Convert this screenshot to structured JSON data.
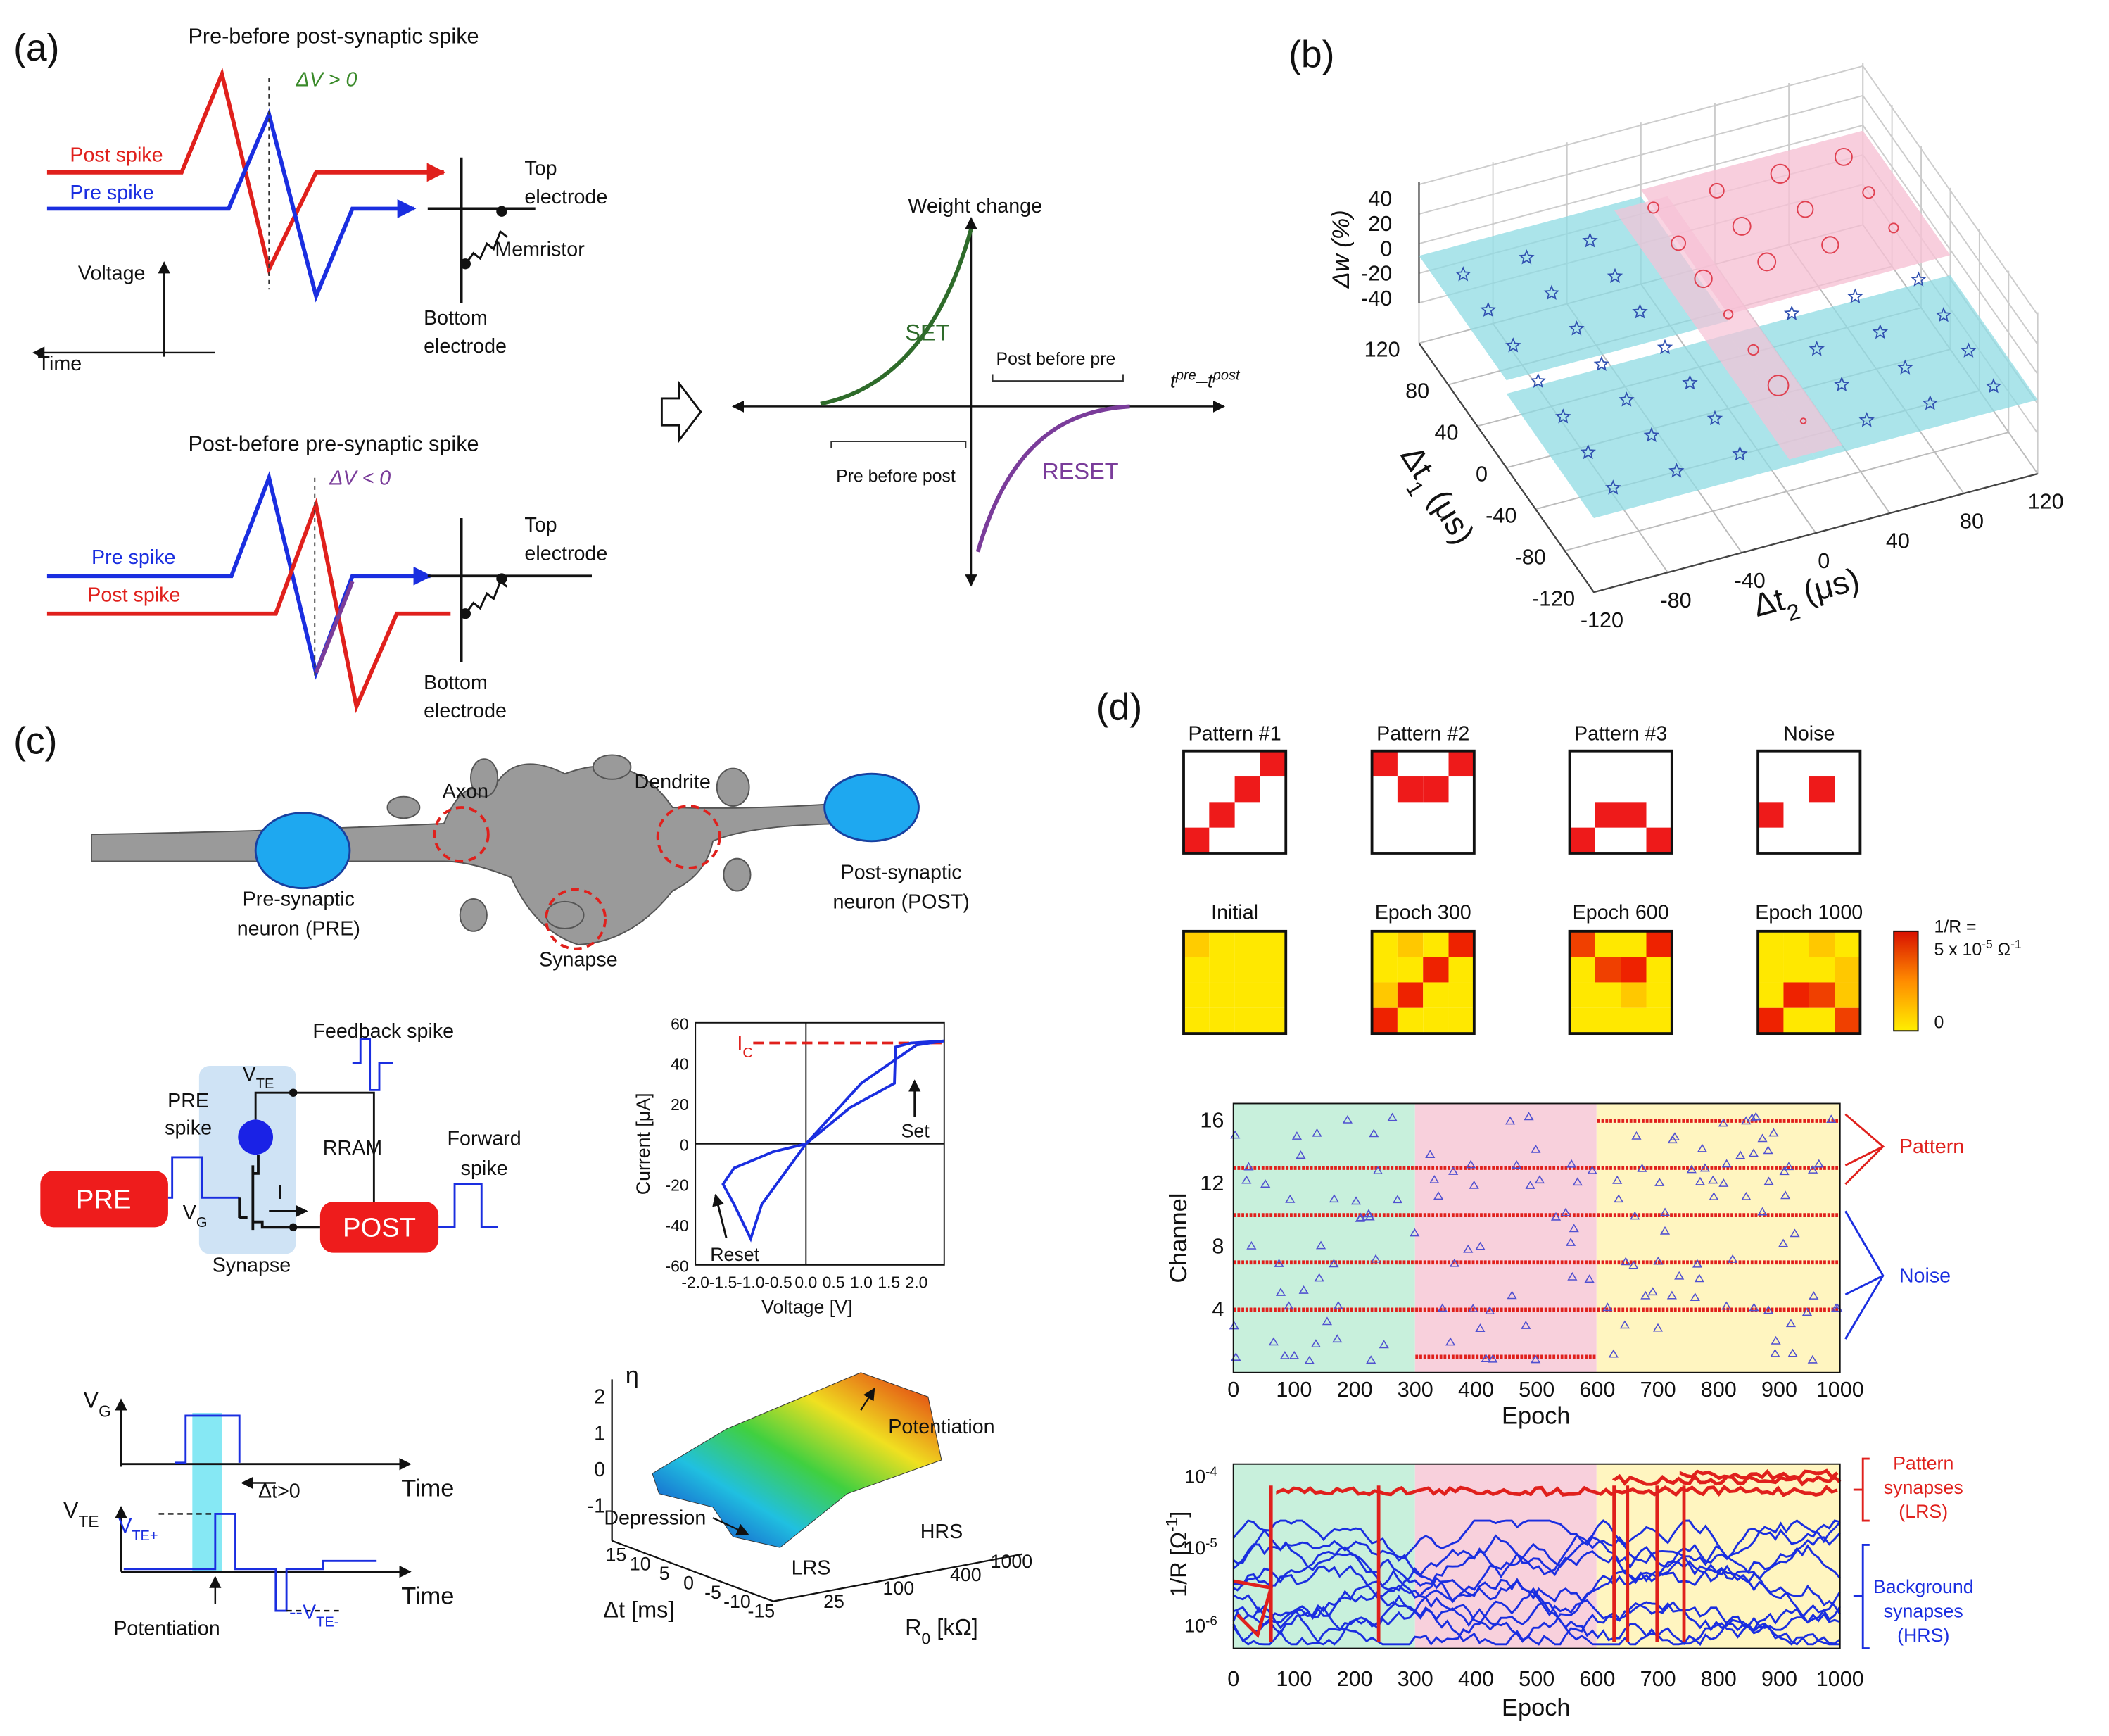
{
  "panel_a": {
    "label": "(a)",
    "pre_before_post": {
      "title": "Pre-before post-synaptic spike",
      "delta_v": "ΔV > 0",
      "post_spike": "Post spike",
      "pre_spike": "Pre spike",
      "top_electrode": [
        "Top",
        "electrode"
      ],
      "memristor": "Memristor",
      "bottom_electrode": [
        "Bottom",
        "electrode"
      ],
      "voltage": "Voltage",
      "time": "Time"
    },
    "post_before_pre": {
      "title": "Post-before pre-synaptic spike",
      "delta_v": "ΔV < 0",
      "pre_spike": "Pre spike",
      "post_spike": "Post spike",
      "top_electrode": [
        "Top",
        "electrode"
      ],
      "bottom_electrode": [
        "Bottom",
        "electrode"
      ]
    },
    "weight_plot": {
      "title": "Weight change",
      "set": "SET",
      "reset": "RESET",
      "post_before_pre": "Post before pre",
      "pre_before_post": "Pre before post",
      "x_label": [
        "t",
        "pre",
        "–t",
        "post"
      ]
    }
  },
  "panel_b": {
    "label": "(b)",
    "z_label": "Δw (%)",
    "z_ticks": [
      40,
      20,
      0,
      -20,
      -40
    ],
    "y_label": [
      "Δt",
      "1",
      " (μs)"
    ],
    "y_ticks": [
      120,
      80,
      40,
      0,
      -40,
      -80,
      -120
    ],
    "x_label": [
      "Δt",
      "2",
      " (μs)"
    ],
    "x_ticks": [
      -120,
      -80,
      -40,
      0,
      40,
      80,
      120
    ]
  },
  "panel_c": {
    "label": "(c)",
    "neuron": {
      "axon": "Axon",
      "dendrite": "Dendrite",
      "pre_neuron": [
        "Pre-synaptic",
        "neuron (PRE)"
      ],
      "post_neuron": [
        "Post-synaptic",
        "neuron (POST)"
      ],
      "synapse": "Synapse"
    },
    "circuit": {
      "feedback_spike": "Feedback spike",
      "v_te": [
        "V",
        "TE"
      ],
      "pre_spike": [
        "PRE",
        "spike"
      ],
      "rram": "RRAM",
      "forward_spike": [
        "Forward",
        "spike"
      ],
      "pre": "PRE",
      "post": "POST",
      "v_g": [
        "V",
        "G"
      ],
      "current": "I",
      "synapse": "Synapse"
    },
    "iv_plot": {
      "y_label": "Current [μA]",
      "x_label": "Voltage [V]",
      "y_ticks": [
        60,
        40,
        20,
        0,
        -20,
        -40,
        -60
      ],
      "x_ticks": [
        "-2.0",
        "-1.5",
        "-1.0",
        "-0.5",
        "0.0",
        "0.5",
        "1.0",
        "1.5",
        "2.0"
      ],
      "ic": [
        "I",
        "C"
      ],
      "set": "Set",
      "reset": "Reset"
    },
    "timing": {
      "v_g": [
        "V",
        "G"
      ],
      "v_te": [
        "V",
        "TE"
      ],
      "v_te_plus": [
        "V",
        "TE+"
      ],
      "v_te_minus": [
        "--V",
        "TE-"
      ],
      "delta_t": "Δt>0",
      "time": [
        "Time",
        "Time"
      ],
      "potentiation": "Potentiation"
    },
    "eta_plot": {
      "z_label": "η",
      "z_ticks": [
        2,
        1,
        0,
        -1
      ],
      "potentiation": "Potentiation",
      "depression": "Depression",
      "hrs": "HRS",
      "lrs": "LRS",
      "dt_label": "Δt [ms]",
      "dt_ticks": [
        15,
        10,
        5,
        0,
        -5,
        -10,
        -15
      ],
      "r_ticks": [
        25,
        100,
        400,
        1000
      ],
      "r_label": [
        "R",
        "0",
        " [kΩ]"
      ]
    }
  },
  "panel_d": {
    "label": "(d)",
    "patterns": [
      "Pattern #1",
      "Pattern #2",
      "Pattern #3",
      "Noise"
    ],
    "epochs": [
      "Initial",
      "Epoch 300",
      "Epoch 600",
      "Epoch 1000"
    ],
    "colorbar": {
      "top": [
        "1/R =",
        "5 x 10",
        "-5",
        " Ω",
        "-1"
      ],
      "bottom": 0
    },
    "raster": {
      "y_label": "Channel",
      "y_ticks": [
        4,
        8,
        12,
        16
      ],
      "x_ticks": [
        0,
        100,
        200,
        300,
        400,
        500,
        600,
        700,
        800,
        900,
        1000
      ],
      "x_label": "Epoch",
      "pattern": "Pattern",
      "noise": "Noise"
    },
    "conductance": {
      "y_label": [
        "1/R [Ω",
        "-1",
        "]"
      ],
      "y_ticks": [
        [
          "10",
          "-4"
        ],
        [
          "10",
          "-5"
        ],
        [
          "10",
          "-6"
        ]
      ],
      "x_ticks": [
        0,
        100,
        200,
        300,
        400,
        500,
        600,
        700,
        800,
        900,
        1000
      ],
      "x_label": "Epoch",
      "pattern_synapses": [
        "Pattern",
        "synapses",
        "(LRS)"
      ],
      "background_synapses": [
        "Background",
        "synapses",
        "(HRS)"
      ]
    }
  }
}
